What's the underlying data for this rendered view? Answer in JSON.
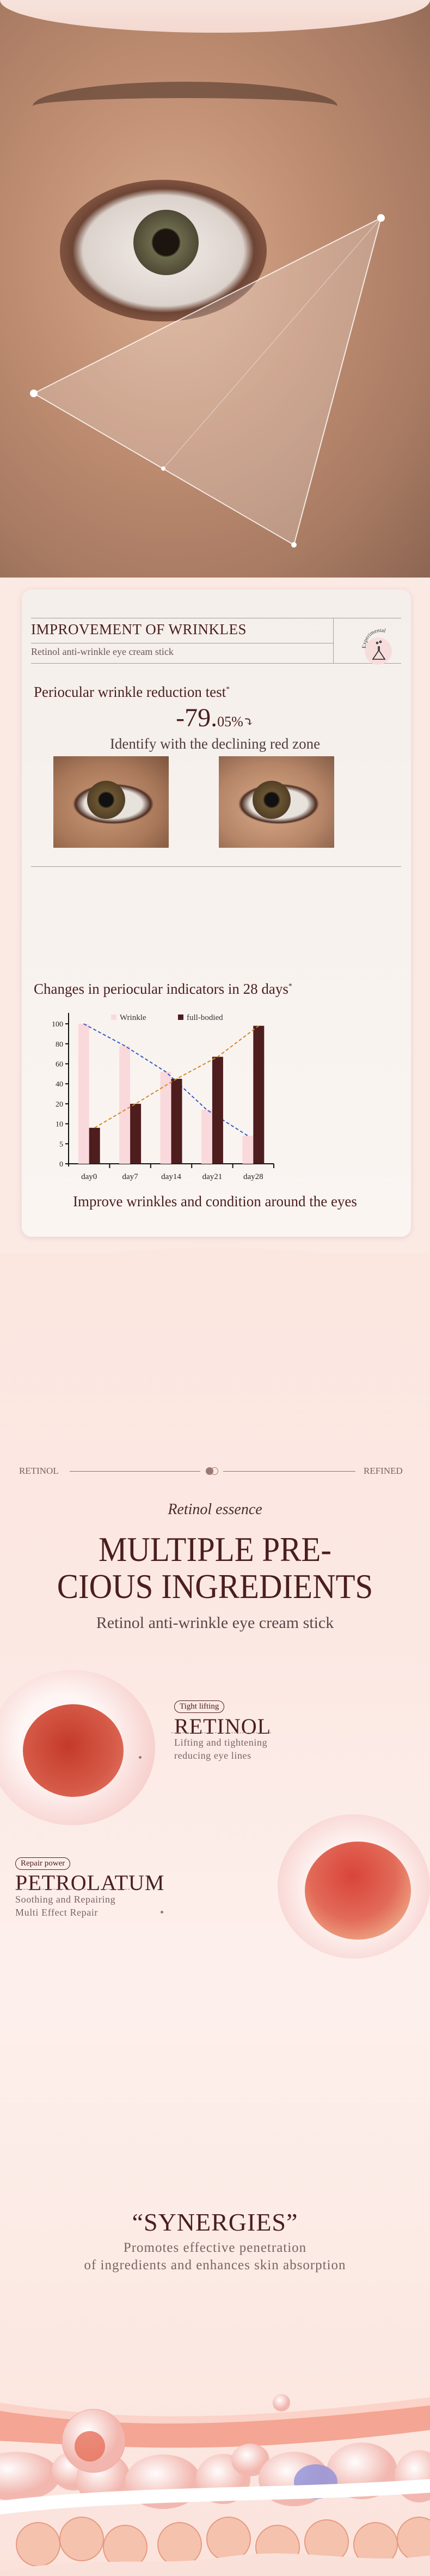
{
  "card": {
    "title": "IMPROVEMENT OF WRINKLES",
    "subtitle": "Retinol anti-wrinkle eye cream stick",
    "badge_text": "Experimental",
    "badge_icon": "flask-icon",
    "test_title": "Periocular wrinkle reduction test",
    "asterisk": "*",
    "stat_main": "-79.",
    "stat_decimal": "05%",
    "stat_icon": "arrow-down-icon",
    "stat_caption": "Identify with the declining red zone",
    "chart_title": "Changes in periocular indicators in 28 days",
    "chart_caption": "Improve wrinkles and condition around the eyes"
  },
  "chart_data": {
    "type": "bar",
    "title": "Changes in periocular indicators in 28 days",
    "categories": [
      "day0",
      "day7",
      "day14",
      "day21",
      "day28"
    ],
    "y_ticks": [
      0,
      5,
      10,
      20,
      40,
      60,
      80,
      100
    ],
    "y_scale": "non-uniform (equal spacing between listed ticks)",
    "legend_position": "top",
    "grid": false,
    "series": [
      {
        "name": "Wrinkle",
        "color": "#fad9dc",
        "values": [
          100,
          78,
          52,
          17,
          7
        ],
        "trend_color": "#2f5fc4"
      },
      {
        "name": "full-bodied",
        "color": "#4e1d1e",
        "values": [
          9,
          20,
          45,
          67,
          98
        ],
        "trend_color": "#d08a2a"
      }
    ]
  },
  "section2": {
    "left_label": "RETINOL",
    "right_label": "REFINED",
    "script_title": "Retinol essence",
    "title_line1": "MULTIPLE PRE-",
    "title_line2": "CIOUS INGREDIENTS",
    "subtitle": "Retinol anti-wrinkle eye cream stick",
    "ingredients": [
      {
        "tag": "Tight lifting",
        "name": "RETINOL",
        "desc1": "Lifting and tightening",
        "desc2": "reducing eye lines"
      },
      {
        "tag": "Repair power",
        "name": "PETROLATUM",
        "desc1": "Soothing and Repairing",
        "desc2": "Multi Effect Repair"
      }
    ]
  },
  "section3": {
    "title": "“SYNERGIES”",
    "line1": "Promotes effective penetration",
    "line2": "of ingredients and enhances skin absorption"
  },
  "colors": {
    "brand": "#4a1e1e",
    "background": "#fbe9e4"
  }
}
